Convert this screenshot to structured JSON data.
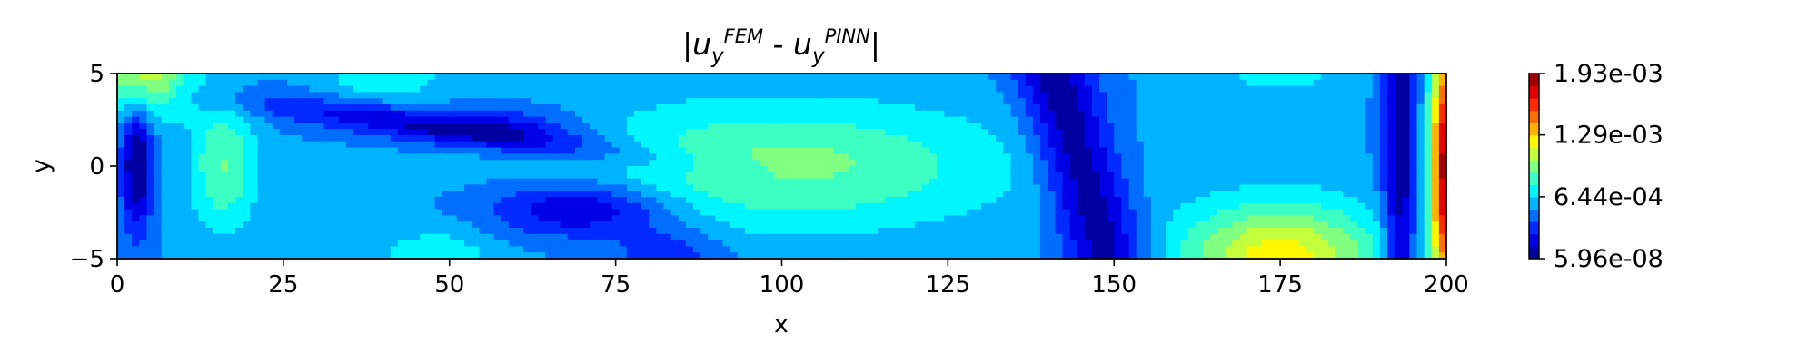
{
  "chart_data": {
    "type": "heatmap",
    "title": {
      "bar_left": "|",
      "u1": "u",
      "u1_sub": "y",
      "u1_sup": "FEM",
      "minus": " - ",
      "u2": "u",
      "u2_sub": "y",
      "u2_sup": "PINN",
      "bar_right": "|"
    },
    "xlabel": "x",
    "ylabel": "y",
    "xlim": [
      0,
      200
    ],
    "ylim": [
      -5,
      5
    ],
    "x_ticks": [
      0,
      25,
      50,
      75,
      100,
      125,
      150,
      175,
      200
    ],
    "x_tick_labels": [
      "0",
      "25",
      "50",
      "75",
      "100",
      "125",
      "150",
      "175",
      "200"
    ],
    "y_ticks": [
      5,
      0,
      -5
    ],
    "y_tick_labels": [
      "5",
      "0",
      "−5"
    ],
    "colormap": "jet",
    "colorbar": {
      "range": [
        5.96e-08,
        0.00193
      ],
      "ticks": [
        5.96e-08,
        0.000644,
        0.00129,
        0.00193
      ],
      "tick_labels": [
        "5.96e-08",
        "6.44e-04",
        "1.29e-03",
        "1.93e-03"
      ],
      "levels": 15
    }
  }
}
